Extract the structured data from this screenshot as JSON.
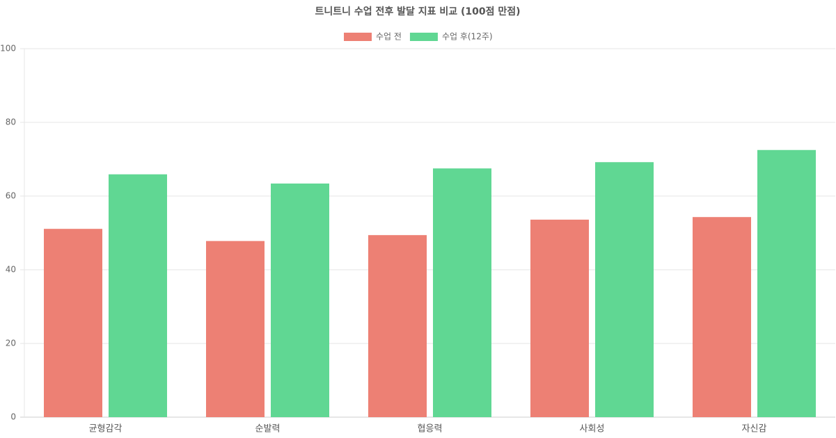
{
  "chart_data": {
    "type": "bar",
    "title": "트니트니 수업 전후 발달 지표 비교 (100점 만점)",
    "categories": [
      "균형감각",
      "순발력",
      "협응력",
      "사회성",
      "자신감"
    ],
    "series": [
      {
        "name": "수업 전",
        "color": "#ed8074",
        "values": [
          51.1,
          47.8,
          49.4,
          53.6,
          54.3
        ]
      },
      {
        "name": "수업 후(12주)",
        "color": "#60d793",
        "values": [
          65.9,
          63.4,
          67.5,
          69.2,
          72.5
        ]
      }
    ],
    "ylim": [
      0,
      100
    ],
    "yticks": [
      0,
      20,
      40,
      60,
      80,
      100
    ],
    "grid": true,
    "legend": "top"
  }
}
